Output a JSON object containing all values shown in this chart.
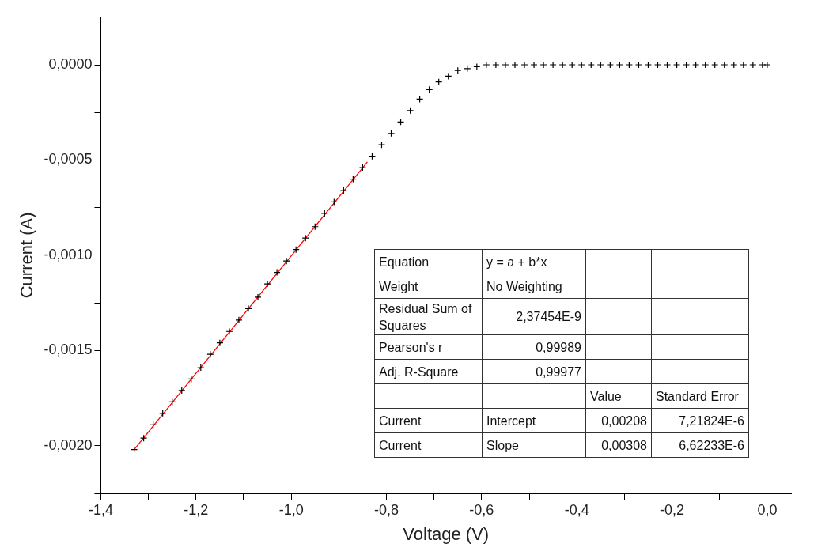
{
  "chart_data": {
    "type": "scatter",
    "xlabel": "Voltage (V)",
    "ylabel": "Current (A)",
    "xlim": [
      -1.4,
      0.05
    ],
    "ylim": [
      -0.00225,
      0.00025
    ],
    "xticks": [
      {
        "value": -1.4,
        "label": "-1,4"
      },
      {
        "value": -1.3,
        "label": null
      },
      {
        "value": -1.2,
        "label": "-1,2"
      },
      {
        "value": -1.1,
        "label": null
      },
      {
        "value": -1.0,
        "label": "-1,0"
      },
      {
        "value": -0.9,
        "label": null
      },
      {
        "value": -0.8,
        "label": "-0,8"
      },
      {
        "value": -0.7,
        "label": null
      },
      {
        "value": -0.6,
        "label": "-0,6"
      },
      {
        "value": -0.5,
        "label": null
      },
      {
        "value": -0.4,
        "label": "-0,4"
      },
      {
        "value": -0.3,
        "label": null
      },
      {
        "value": -0.2,
        "label": "-0,2"
      },
      {
        "value": -0.1,
        "label": null
      },
      {
        "value": 0,
        "label": "0,0"
      }
    ],
    "yticks": [
      {
        "value": -0.00225,
        "label": null
      },
      {
        "value": -0.002,
        "label": "-0,0020"
      },
      {
        "value": -0.00175,
        "label": null
      },
      {
        "value": -0.0015,
        "label": "-0,0015"
      },
      {
        "value": -0.00125,
        "label": null
      },
      {
        "value": -0.001,
        "label": "-0,0010"
      },
      {
        "value": -0.00075,
        "label": null
      },
      {
        "value": -0.0005,
        "label": "-0,0005"
      },
      {
        "value": -0.00025,
        "label": null
      },
      {
        "value": 0,
        "label": "0,0000"
      },
      {
        "value": 0.00025,
        "label": null
      }
    ],
    "grid": false,
    "legend": false,
    "series": [
      {
        "type": "scatter",
        "marker": "cross",
        "color": "#000000",
        "x": [
          -1.33,
          -1.31,
          -1.29,
          -1.27,
          -1.25,
          -1.23,
          -1.21,
          -1.19,
          -1.17,
          -1.15,
          -1.13,
          -1.11,
          -1.09,
          -1.07,
          -1.05,
          -1.03,
          -1.01,
          -0.99,
          -0.97,
          -0.95,
          -0.93,
          -0.91,
          -0.89,
          -0.87,
          -0.85,
          -0.83,
          -0.81,
          -0.79,
          -0.77,
          -0.75,
          -0.73,
          -0.71,
          -0.69,
          -0.67,
          -0.65,
          -0.63,
          -0.61,
          -0.59,
          -0.57,
          -0.55,
          -0.53,
          -0.51,
          -0.49,
          -0.47,
          -0.45,
          -0.43,
          -0.41,
          -0.39,
          -0.37,
          -0.35,
          -0.33,
          -0.31,
          -0.29,
          -0.27,
          -0.25,
          -0.23,
          -0.21,
          -0.19,
          -0.17,
          -0.15,
          -0.13,
          -0.11,
          -0.09,
          -0.07,
          -0.05,
          -0.03,
          -0.01,
          0
        ],
        "values": [
          -0.00202,
          -0.00196,
          -0.00189,
          -0.00183,
          -0.00177,
          -0.00171,
          -0.00165,
          -0.00159,
          -0.00152,
          -0.00146,
          -0.0014,
          -0.00134,
          -0.00128,
          -0.00122,
          -0.00115,
          -0.00109,
          -0.00103,
          -0.00097,
          -0.00091,
          -0.00085,
          -0.00078,
          -0.00072,
          -0.00066,
          -0.0006,
          -0.00054,
          -0.00048,
          -0.00042,
          -0.00036,
          -0.0003,
          -0.00024,
          -0.00018,
          -0.00013,
          -9e-05,
          -6e-05,
          -3e-05,
          -2e-05,
          -1e-05,
          0,
          0,
          0,
          0,
          0,
          0,
          0,
          0,
          0,
          0,
          0,
          0,
          0,
          0,
          0,
          0,
          0,
          0,
          0,
          0,
          0,
          0,
          0,
          0,
          0,
          0,
          0,
          0,
          0,
          0,
          0
        ]
      },
      {
        "type": "line",
        "marker": "none",
        "line_style": "solid",
        "color": "#ff0000",
        "x": [
          -1.33,
          -0.84
        ],
        "values": [
          -0.00202,
          -0.00051
        ]
      }
    ],
    "annotations": [
      "Equation",
      "y = a + b*x",
      "Weight",
      "No Weighting",
      "Residual Sum of Squares",
      "2,37454E-9",
      "Pearson's r",
      "0,99989",
      "Adj. R-Square",
      "0,99977",
      "Value",
      "Standard Error",
      "Current",
      "Intercept",
      "0,00208",
      "7,21824E-6",
      "Current",
      "Slope",
      "0,00308",
      "6,62233E-6"
    ]
  }
}
